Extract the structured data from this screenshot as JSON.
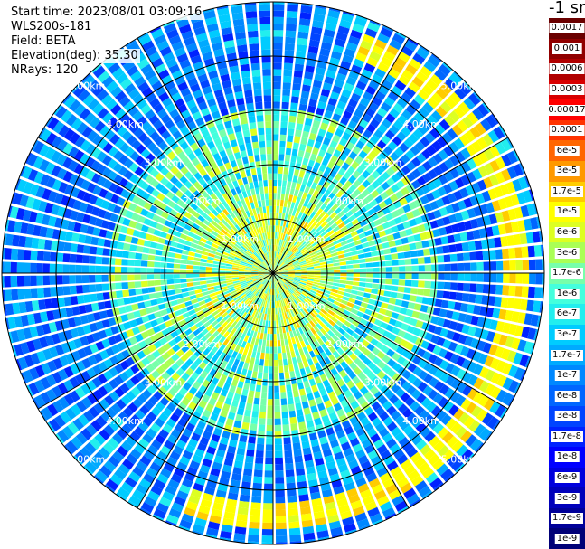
{
  "info": {
    "start_time": "Start time: 2023/08/01 03:09:16",
    "instrument": "WLS200s-181",
    "field": "Field: BETA",
    "elevation": "Elevation(deg): 35.30",
    "nrays": "NRays: 120"
  },
  "colorbar": {
    "unit_label": "-1 sr",
    "labels": [
      "0.0017",
      "0.001",
      "0.0006",
      "0.0003",
      "0.00017",
      "0.0001",
      "6e-5",
      "3e-5",
      "1.7e-5",
      "1e-5",
      "6e-6",
      "3e-6",
      "1.7e-6",
      "1e-6",
      "6e-7",
      "3e-7",
      "1.7e-7",
      "1e-7",
      "6e-8",
      "3e-8",
      "1.7e-8",
      "1e-8",
      "6e-9",
      "3e-9",
      "1.7e-9",
      "1e-9"
    ],
    "colors": [
      "#6a0000",
      "#900000",
      "#b00000",
      "#d80000",
      "#ff0000",
      "#ff3300",
      "#ff6600",
      "#ff9900",
      "#ffcc00",
      "#ffff00",
      "#ddff22",
      "#aaff55",
      "#77ffaa",
      "#44ffdd",
      "#22eeee",
      "#00ccff",
      "#00aaff",
      "#0088ff",
      "#0066ff",
      "#0044ff",
      "#0022ff",
      "#0000ff",
      "#0000dd",
      "#0000bb",
      "#000099",
      "#000077"
    ]
  },
  "chart_data": {
    "type": "heatmap",
    "projection": "polar-ppi",
    "field": "BETA",
    "nrays": 120,
    "range_unit": "km",
    "range_rings_km": [
      1.0,
      2.0,
      3.0,
      4.0,
      5.0
    ],
    "ring_labels": [
      "1.00km",
      "2.00km",
      "3.00km",
      "4.00km",
      "5.00km"
    ],
    "max_range_km": 5.0,
    "radial_spokes_deg": [
      0,
      30,
      60,
      90,
      120,
      150,
      180,
      210,
      240,
      270,
      300,
      330
    ],
    "color_scale": "log",
    "value_range": [
      1e-09,
      0.0017
    ],
    "typical_values": {
      "center_to_1.5km": 3e-06,
      "2km_to_3km": 1e-06,
      "beyond_3km": 1e-07
    },
    "enhanced_arc": {
      "range_km": [
        4.2,
        4.7
      ],
      "azimuth_deg": [
        20,
        200
      ],
      "value": 1e-05
    }
  }
}
